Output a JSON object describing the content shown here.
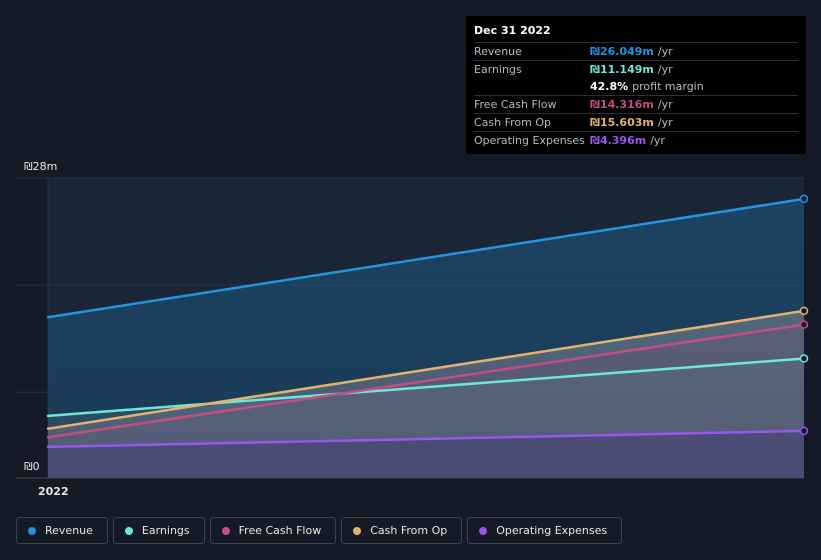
{
  "chart_data": {
    "type": "area",
    "currency_symbol": "₪",
    "x_range": [
      "2022-01-01",
      "2022-12-31"
    ],
    "x_ticks": [
      {
        "value": "2022-01-01",
        "label": "2022"
      }
    ],
    "y_ticks": [
      "₪0",
      "₪28m"
    ],
    "ylim": [
      0,
      28
    ],
    "unit": "m",
    "grid": true,
    "legend_position": "bottom-left",
    "series": [
      {
        "key": "revenue",
        "name": "Revenue",
        "color": "#2394df",
        "x": [
          "2022-01-01",
          "2022-12-31"
        ],
        "values": [
          15.0,
          26.049
        ]
      },
      {
        "key": "earnings",
        "name": "Earnings",
        "color": "#6ee7d8",
        "x": [
          "2022-01-01",
          "2022-12-31"
        ],
        "values": [
          5.8,
          11.149
        ]
      },
      {
        "key": "fcf",
        "name": "Free Cash Flow",
        "color": "#c64d83",
        "x": [
          "2022-01-01",
          "2022-12-31"
        ],
        "values": [
          3.8,
          14.316
        ]
      },
      {
        "key": "cfo",
        "name": "Cash From Op",
        "color": "#e2b36f",
        "x": [
          "2022-01-01",
          "2022-12-31"
        ],
        "values": [
          4.6,
          15.603
        ]
      },
      {
        "key": "opex",
        "name": "Operating Expenses",
        "color": "#9a55ef",
        "x": [
          "2022-01-01",
          "2022-12-31"
        ],
        "values": [
          2.9,
          4.396
        ]
      }
    ]
  },
  "tooltip": {
    "date": "Dec 31 2022",
    "rows": [
      {
        "label": "Revenue",
        "value": "₪26.049m",
        "unit": "/yr",
        "color": "#2394df"
      },
      {
        "label": "Earnings",
        "value": "₪11.149m",
        "unit": "/yr",
        "color": "#6ee7d8"
      },
      {
        "label": "",
        "value": "42.8%",
        "unit": "profit margin",
        "color": "#ffffff"
      },
      {
        "label": "Free Cash Flow",
        "value": "₪14.316m",
        "unit": "/yr",
        "color": "#c64d83"
      },
      {
        "label": "Cash From Op",
        "value": "₪15.603m",
        "unit": "/yr",
        "color": "#e2b36f"
      },
      {
        "label": "Operating Expenses",
        "value": "₪4.396m",
        "unit": "/yr",
        "color": "#9a55ef"
      }
    ]
  },
  "legend": [
    {
      "label": "Revenue",
      "color": "#2394df"
    },
    {
      "label": "Earnings",
      "color": "#6ee7d8"
    },
    {
      "label": "Free Cash Flow",
      "color": "#c64d83"
    },
    {
      "label": "Cash From Op",
      "color": "#e2b36f"
    },
    {
      "label": "Operating Expenses",
      "color": "#9a55ef"
    }
  ]
}
